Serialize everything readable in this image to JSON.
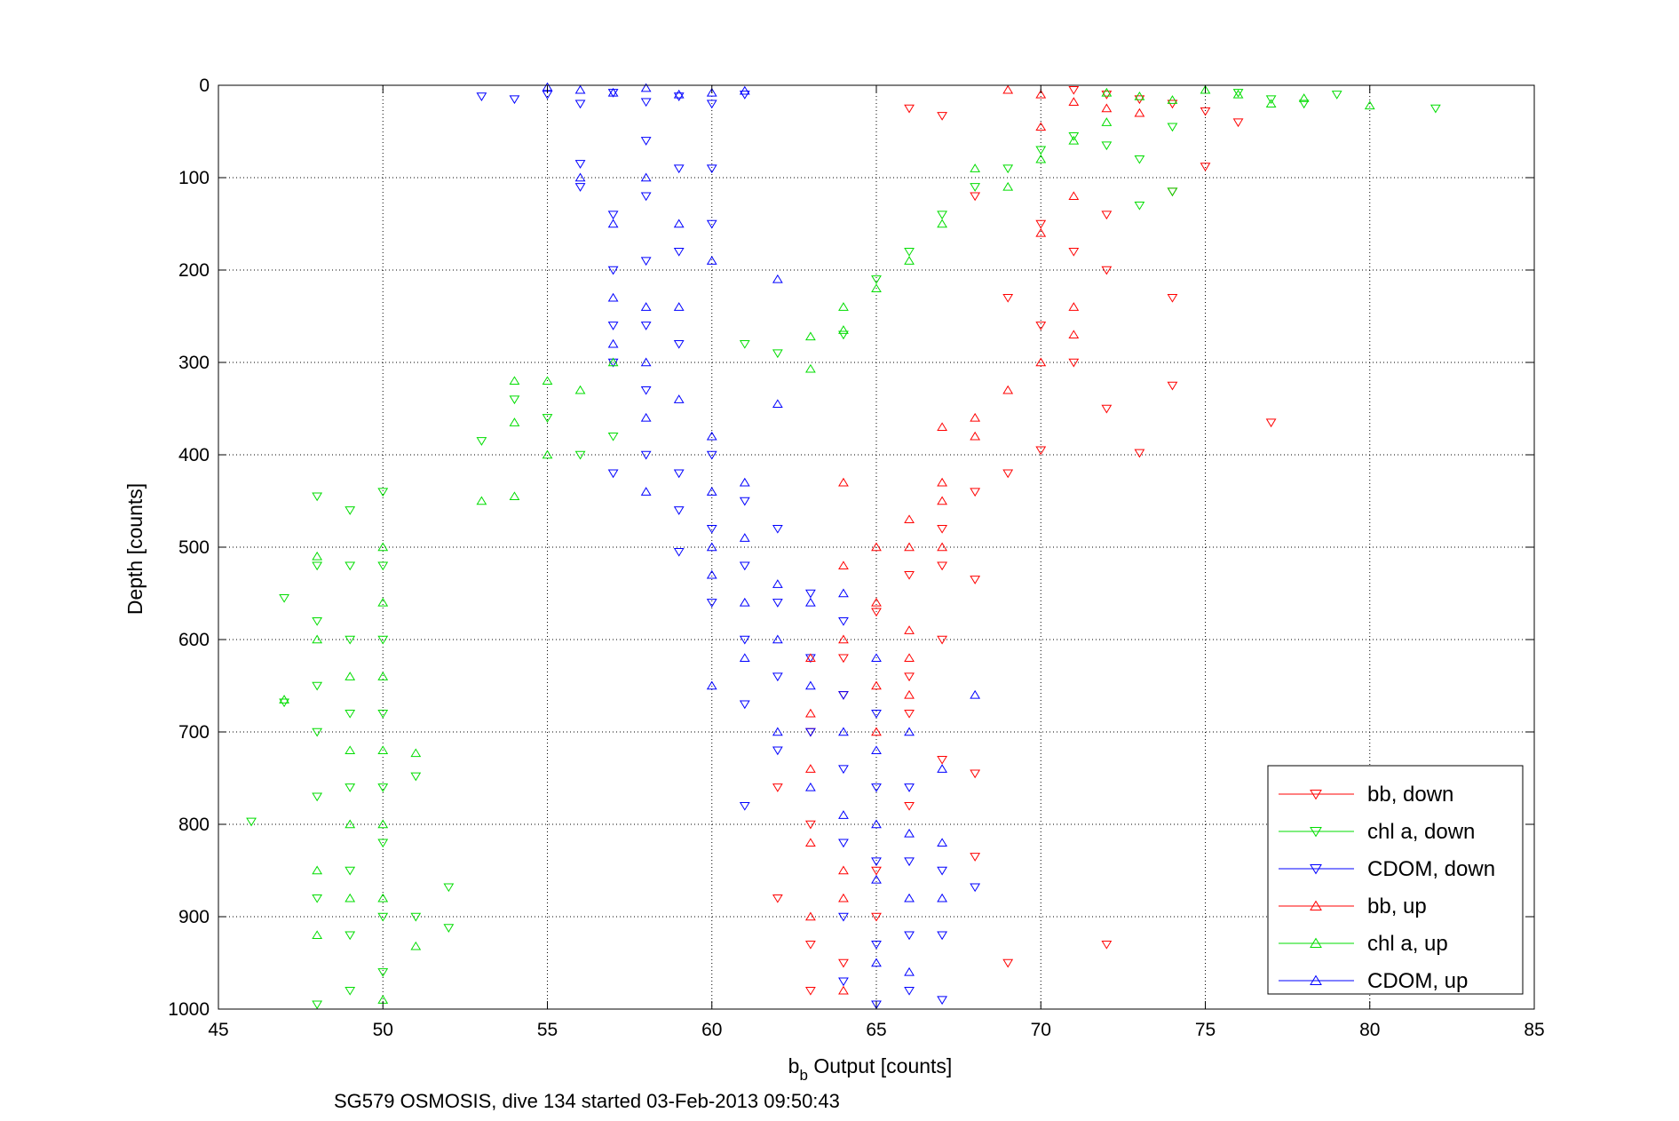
{
  "chart_data": {
    "type": "scatter",
    "caption": "SG579 OSMOSIS, dive 134 started 03-Feb-2013 09:50:43",
    "xlabel_main": "b",
    "xlabel_sub": "b",
    "xlabel_rest": " Output [counts]",
    "ylabel": "Depth [counts]",
    "xlim": [
      45,
      85
    ],
    "ylim": [
      0,
      1000
    ],
    "y_reversed": true,
    "grid": true,
    "legend_position": "bottom-right",
    "xticks": [
      "45",
      "50",
      "55",
      "60",
      "65",
      "70",
      "75",
      "80",
      "85"
    ],
    "yticks": [
      "0",
      "100",
      "200",
      "300",
      "400",
      "500",
      "600",
      "700",
      "800",
      "900",
      "1000"
    ],
    "series": [
      {
        "name": "bb, down",
        "color": "#ff0000",
        "marker": "triangle-down",
        "points": [
          [
            66,
            25
          ],
          [
            67,
            33
          ],
          [
            71,
            5
          ],
          [
            72,
            10
          ],
          [
            73,
            15
          ],
          [
            74,
            20
          ],
          [
            75,
            28
          ],
          [
            76,
            40
          ],
          [
            75,
            88
          ],
          [
            72,
            140
          ],
          [
            74,
            115
          ],
          [
            68,
            120
          ],
          [
            70,
            150
          ],
          [
            71,
            180
          ],
          [
            72,
            200
          ],
          [
            69,
            230
          ],
          [
            70,
            260
          ],
          [
            71,
            300
          ],
          [
            72,
            350
          ],
          [
            74,
            230
          ],
          [
            74,
            325
          ],
          [
            77,
            365
          ],
          [
            73,
            398
          ],
          [
            70,
            395
          ],
          [
            69,
            420
          ],
          [
            68,
            440
          ],
          [
            67,
            480
          ],
          [
            66,
            530
          ],
          [
            65,
            570
          ],
          [
            64,
            620
          ],
          [
            64,
            660
          ],
          [
            63,
            700
          ],
          [
            62,
            760
          ],
          [
            63,
            800
          ],
          [
            62,
            880
          ],
          [
            63,
            930
          ],
          [
            63,
            980
          ],
          [
            64,
            950
          ],
          [
            65,
            900
          ],
          [
            65,
            850
          ],
          [
            66,
            780
          ],
          [
            67,
            730
          ],
          [
            67,
            520
          ],
          [
            68,
            535
          ],
          [
            68,
            745
          ],
          [
            68,
            835
          ],
          [
            69,
            950
          ],
          [
            72,
            930
          ],
          [
            67,
            600
          ],
          [
            66,
            640
          ],
          [
            66,
            680
          ]
        ]
      },
      {
        "name": "chl a, down",
        "color": "#00dd00",
        "marker": "triangle-down",
        "points": [
          [
            82,
            25
          ],
          [
            79,
            10
          ],
          [
            78,
            20
          ],
          [
            77,
            15
          ],
          [
            76,
            8
          ],
          [
            74,
            45
          ],
          [
            73,
            80
          ],
          [
            74,
            115
          ],
          [
            73,
            130
          ],
          [
            72,
            65
          ],
          [
            71,
            55
          ],
          [
            70,
            70
          ],
          [
            69,
            90
          ],
          [
            68,
            110
          ],
          [
            67,
            140
          ],
          [
            66,
            180
          ],
          [
            65,
            210
          ],
          [
            64,
            270
          ],
          [
            62,
            290
          ],
          [
            61,
            280
          ],
          [
            57,
            380
          ],
          [
            56,
            400
          ],
          [
            55,
            360
          ],
          [
            54,
            340
          ],
          [
            53,
            385
          ],
          [
            52,
            868
          ],
          [
            52,
            912
          ],
          [
            51,
            748
          ],
          [
            51,
            900
          ],
          [
            50,
            440
          ],
          [
            50,
            520
          ],
          [
            50,
            600
          ],
          [
            50,
            680
          ],
          [
            50,
            760
          ],
          [
            50,
            820
          ],
          [
            50,
            900
          ],
          [
            50,
            960
          ],
          [
            49,
            460
          ],
          [
            49,
            520
          ],
          [
            49,
            600
          ],
          [
            49,
            680
          ],
          [
            49,
            760
          ],
          [
            49,
            850
          ],
          [
            49,
            920
          ],
          [
            49,
            980
          ],
          [
            48,
            445
          ],
          [
            48,
            520
          ],
          [
            48,
            580
          ],
          [
            48,
            650
          ],
          [
            48,
            700
          ],
          [
            48,
            770
          ],
          [
            48,
            880
          ],
          [
            48,
            995
          ],
          [
            46,
            797
          ],
          [
            47,
            555
          ],
          [
            47,
            668
          ]
        ]
      },
      {
        "name": "CDOM, down",
        "color": "#0000ff",
        "marker": "triangle-down",
        "points": [
          [
            53,
            12
          ],
          [
            54,
            15
          ],
          [
            55,
            10
          ],
          [
            56,
            20
          ],
          [
            57,
            8
          ],
          [
            58,
            18
          ],
          [
            59,
            12
          ],
          [
            60,
            20
          ],
          [
            61,
            10
          ],
          [
            56,
            85
          ],
          [
            56,
            110
          ],
          [
            57,
            140
          ],
          [
            57,
            200
          ],
          [
            57,
            260
          ],
          [
            57,
            300
          ],
          [
            57,
            420
          ],
          [
            58,
            60
          ],
          [
            58,
            120
          ],
          [
            58,
            190
          ],
          [
            58,
            260
          ],
          [
            58,
            330
          ],
          [
            58,
            400
          ],
          [
            59,
            90
          ],
          [
            59,
            180
          ],
          [
            59,
            280
          ],
          [
            59,
            420
          ],
          [
            59,
            460
          ],
          [
            59,
            505
          ],
          [
            60,
            90
          ],
          [
            60,
            150
          ],
          [
            60,
            400
          ],
          [
            60,
            480
          ],
          [
            60,
            560
          ],
          [
            61,
            450
          ],
          [
            61,
            520
          ],
          [
            61,
            600
          ],
          [
            61,
            670
          ],
          [
            61,
            780
          ],
          [
            62,
            480
          ],
          [
            62,
            560
          ],
          [
            62,
            640
          ],
          [
            62,
            720
          ],
          [
            63,
            550
          ],
          [
            63,
            620
          ],
          [
            63,
            700
          ],
          [
            64,
            580
          ],
          [
            64,
            660
          ],
          [
            64,
            740
          ],
          [
            64,
            820
          ],
          [
            64,
            900
          ],
          [
            64,
            970
          ],
          [
            65,
            680
          ],
          [
            65,
            760
          ],
          [
            65,
            840
          ],
          [
            65,
            930
          ],
          [
            65,
            995
          ],
          [
            66,
            760
          ],
          [
            66,
            840
          ],
          [
            66,
            920
          ],
          [
            66,
            980
          ],
          [
            67,
            850
          ],
          [
            67,
            920
          ],
          [
            67,
            990
          ],
          [
            68,
            868
          ]
        ]
      },
      {
        "name": "bb, up",
        "color": "#ff0000",
        "marker": "triangle-up",
        "points": [
          [
            69,
            5
          ],
          [
            70,
            10
          ],
          [
            71,
            18
          ],
          [
            72,
            25
          ],
          [
            73,
            30
          ],
          [
            70,
            45
          ],
          [
            70,
            160
          ],
          [
            71,
            120
          ],
          [
            71,
            240
          ],
          [
            71,
            270
          ],
          [
            70,
            300
          ],
          [
            69,
            330
          ],
          [
            68,
            360
          ],
          [
            68,
            380
          ],
          [
            67,
            370
          ],
          [
            67,
            450
          ],
          [
            66,
            470
          ],
          [
            66,
            500
          ],
          [
            65,
            500
          ],
          [
            65,
            560
          ],
          [
            64,
            430
          ],
          [
            64,
            520
          ],
          [
            64,
            600
          ],
          [
            63,
            620
          ],
          [
            63,
            680
          ],
          [
            63,
            740
          ],
          [
            63,
            820
          ],
          [
            63,
            900
          ],
          [
            64,
            850
          ],
          [
            64,
            880
          ],
          [
            64,
            980
          ],
          [
            65,
            650
          ],
          [
            65,
            700
          ],
          [
            66,
            590
          ],
          [
            66,
            620
          ],
          [
            66,
            660
          ],
          [
            67,
            430
          ],
          [
            67,
            500
          ]
        ]
      },
      {
        "name": "chl a, up",
        "color": "#00dd00",
        "marker": "triangle-up",
        "points": [
          [
            72,
            8
          ],
          [
            73,
            12
          ],
          [
            74,
            16
          ],
          [
            75,
            5
          ],
          [
            76,
            10
          ],
          [
            77,
            20
          ],
          [
            78,
            14
          ],
          [
            80,
            22
          ],
          [
            72,
            40
          ],
          [
            71,
            60
          ],
          [
            70,
            80
          ],
          [
            69,
            110
          ],
          [
            68,
            90
          ],
          [
            67,
            150
          ],
          [
            66,
            190
          ],
          [
            65,
            220
          ],
          [
            64,
            240
          ],
          [
            64,
            265
          ],
          [
            63,
            272
          ],
          [
            63,
            307
          ],
          [
            57,
            300
          ],
          [
            56,
            330
          ],
          [
            55,
            320
          ],
          [
            55,
            400
          ],
          [
            54,
            320
          ],
          [
            54,
            365
          ],
          [
            54,
            445
          ],
          [
            53,
            450
          ],
          [
            51,
            723
          ],
          [
            51,
            932
          ],
          [
            50,
            500
          ],
          [
            50,
            560
          ],
          [
            50,
            640
          ],
          [
            50,
            720
          ],
          [
            50,
            800
          ],
          [
            50,
            880
          ],
          [
            50,
            990
          ],
          [
            49,
            640
          ],
          [
            49,
            720
          ],
          [
            49,
            800
          ],
          [
            49,
            880
          ],
          [
            48,
            510
          ],
          [
            48,
            600
          ],
          [
            48,
            850
          ],
          [
            48,
            920
          ],
          [
            47,
            665
          ]
        ]
      },
      {
        "name": "CDOM, up",
        "color": "#0000ff",
        "marker": "triangle-up",
        "points": [
          [
            55,
            2
          ],
          [
            56,
            5
          ],
          [
            57,
            8
          ],
          [
            58,
            3
          ],
          [
            59,
            10
          ],
          [
            60,
            8
          ],
          [
            61,
            6
          ],
          [
            56,
            100
          ],
          [
            57,
            150
          ],
          [
            57,
            230
          ],
          [
            57,
            280
          ],
          [
            58,
            100
          ],
          [
            58,
            240
          ],
          [
            58,
            300
          ],
          [
            58,
            360
          ],
          [
            58,
            440
          ],
          [
            59,
            150
          ],
          [
            59,
            240
          ],
          [
            59,
            340
          ],
          [
            60,
            190
          ],
          [
            60,
            380
          ],
          [
            60,
            440
          ],
          [
            60,
            500
          ],
          [
            60,
            530
          ],
          [
            60,
            650
          ],
          [
            61,
            430
          ],
          [
            61,
            490
          ],
          [
            61,
            560
          ],
          [
            61,
            620
          ],
          [
            62,
            210
          ],
          [
            62,
            345
          ],
          [
            62,
            540
          ],
          [
            62,
            600
          ],
          [
            62,
            700
          ],
          [
            63,
            560
          ],
          [
            63,
            650
          ],
          [
            63,
            760
          ],
          [
            64,
            550
          ],
          [
            64,
            700
          ],
          [
            64,
            790
          ],
          [
            65,
            620
          ],
          [
            65,
            720
          ],
          [
            65,
            800
          ],
          [
            65,
            860
          ],
          [
            65,
            950
          ],
          [
            66,
            700
          ],
          [
            66,
            810
          ],
          [
            66,
            880
          ],
          [
            66,
            960
          ],
          [
            67,
            740
          ],
          [
            67,
            820
          ],
          [
            67,
            880
          ],
          [
            68,
            660
          ]
        ]
      }
    ]
  }
}
